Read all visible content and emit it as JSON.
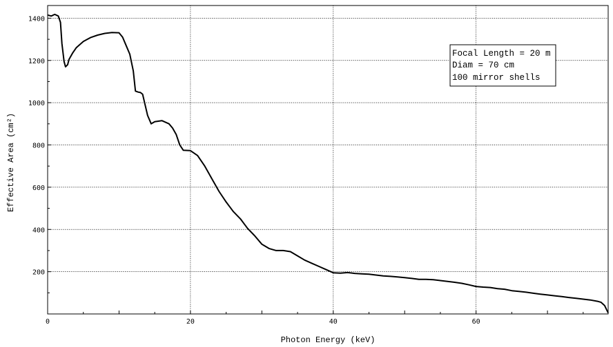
{
  "chart_data": {
    "type": "line",
    "title": "",
    "xlabel": "Photon Energy (keV)",
    "ylabel": "Effective Area (cm²)",
    "xlim": [
      0,
      78.5
    ],
    "ylim": [
      0,
      1460
    ],
    "x_ticks": [
      0,
      20,
      40,
      60
    ],
    "y_ticks": [
      200,
      400,
      600,
      800,
      1000,
      1200,
      1400
    ],
    "grid": true,
    "annotation": [
      "Focal Length = 20 m",
      "Diam = 70 cm",
      "100 mirror shells"
    ],
    "series": [
      {
        "name": "",
        "color": "#000000",
        "x": [
          0,
          0.5,
          1,
          1.5,
          1.8,
          2.0,
          2.3,
          2.5,
          2.8,
          3.0,
          3.5,
          4,
          5,
          6,
          7,
          8,
          9,
          10,
          10.5,
          11,
          11.5,
          12,
          12.3,
          12.7,
          13,
          13.3,
          14,
          14.5,
          15,
          16,
          17,
          17.5,
          18,
          18.5,
          19,
          20,
          21,
          22,
          23,
          24,
          25,
          26,
          27,
          28,
          29,
          30,
          31,
          32,
          33,
          34,
          35,
          36,
          37,
          38,
          39,
          40,
          41,
          42,
          43,
          44,
          45,
          46,
          47,
          48,
          49,
          50,
          51,
          52,
          53,
          54,
          55,
          56,
          57,
          58,
          59,
          60,
          61,
          62,
          63,
          64,
          65,
          66,
          67,
          68,
          69,
          70,
          71,
          72,
          73,
          74,
          75,
          76,
          77,
          77.5,
          78,
          78.5
        ],
        "y": [
          1415,
          1410,
          1418,
          1410,
          1380,
          1280,
          1195,
          1170,
          1180,
          1205,
          1235,
          1260,
          1290,
          1308,
          1320,
          1328,
          1332,
          1331,
          1310,
          1270,
          1230,
          1150,
          1055,
          1050,
          1048,
          1040,
          940,
          900,
          910,
          915,
          900,
          880,
          850,
          800,
          775,
          773,
          750,
          700,
          640,
          580,
          530,
          485,
          450,
          405,
          370,
          330,
          310,
          300,
          300,
          295,
          275,
          255,
          240,
          225,
          210,
          195,
          193,
          196,
          192,
          190,
          188,
          184,
          180,
          178,
          175,
          172,
          168,
          164,
          164,
          162,
          158,
          154,
          150,
          145,
          138,
          130,
          127,
          125,
          120,
          117,
          110,
          107,
          103,
          98,
          94,
          90,
          86,
          82,
          78,
          74,
          70,
          66,
          60,
          55,
          40,
          5
        ]
      }
    ]
  }
}
